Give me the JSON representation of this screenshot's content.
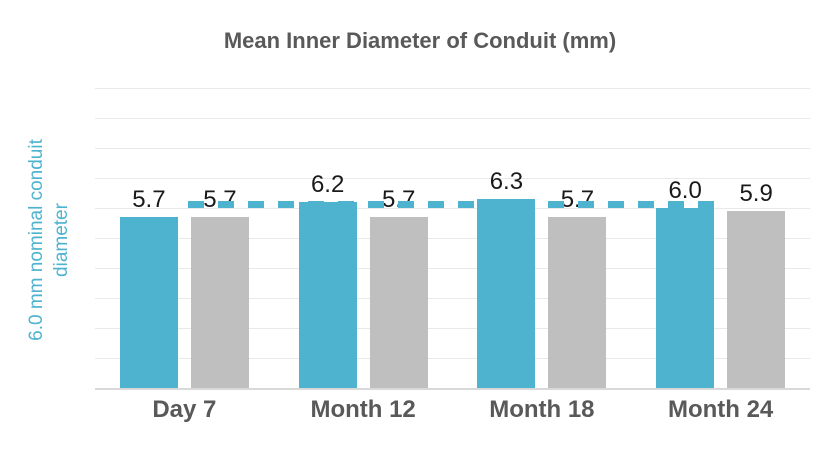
{
  "chart_data": {
    "type": "bar",
    "title": "Mean Inner Diameter of Conduit (mm)",
    "categories": [
      "Day 7",
      "Month 12",
      "Month 18",
      "Month 24"
    ],
    "series": [
      {
        "name": "teal-bars",
        "color": "#4db3cf",
        "values": [
          5.7,
          6.2,
          6.3,
          6.0
        ],
        "labels": [
          "5.7",
          "6.2",
          "6.3",
          "6.0"
        ]
      },
      {
        "name": "gray-bars",
        "color": "#bfbfbf",
        "values": [
          5.7,
          5.7,
          5.7,
          5.9
        ],
        "labels": [
          "5.7",
          "5.7",
          "5.7",
          "5.9"
        ]
      }
    ],
    "xlabel": "",
    "ylabel": "6.0 mm nominal conduit diameter",
    "ylabel_lines": [
      "6.0 mm nominal conduit",
      "diameter"
    ],
    "ylim": [
      0,
      10
    ],
    "grid": {
      "horizontal": true,
      "interval": 1.0
    },
    "reference_line": {
      "value": 6.0,
      "style": "dashed",
      "color": "#4db3cf"
    },
    "legend_position": "none"
  },
  "colors": {
    "teal": "#4db3cf",
    "gray": "#bfbfbf",
    "title_text": "#595959",
    "axis_text": "#595959",
    "value_label_text": "#1a1a1a",
    "gridline": "#e9e9e9",
    "baseline": "#d9d9d9",
    "background": "#ffffff"
  }
}
